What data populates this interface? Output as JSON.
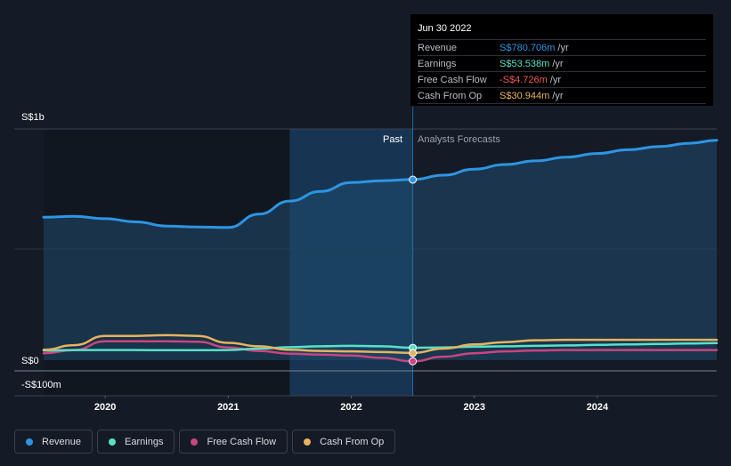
{
  "colors": {
    "revenue": "#2d95e3",
    "earnings": "#58e0c8",
    "free_cash_flow": "#c8467f",
    "cash_from_op": "#e7b35e",
    "background": "#151b26"
  },
  "tooltip": {
    "date": "Jun 30 2022",
    "rows": [
      {
        "label": "Revenue",
        "value": "S$780.706m",
        "unit": "/yr"
      },
      {
        "label": "Earnings",
        "value": "S$53.538m",
        "unit": "/yr"
      },
      {
        "label": "Free Cash Flow",
        "value": "-S$4.726m",
        "unit": "/yr"
      },
      {
        "label": "Cash From Op",
        "value": "S$30.944m",
        "unit": "/yr"
      }
    ]
  },
  "legend": [
    {
      "label": "Revenue",
      "color": "#2d95e3"
    },
    {
      "label": "Earnings",
      "color": "#58e0c8"
    },
    {
      "label": "Free Cash Flow",
      "color": "#c8467f"
    },
    {
      "label": "Cash From Op",
      "color": "#e7b35e"
    }
  ],
  "chart_data": {
    "type": "line",
    "title": "",
    "x_unit": "year",
    "xlim": [
      2019.5,
      2024.97
    ],
    "ylim": [
      -100,
      1000
    ],
    "y_tick_labels": [
      {
        "value": 1000,
        "label": "S$1b"
      },
      {
        "value": 0,
        "label": "S$0"
      },
      {
        "value": -100,
        "label": "-S$100m"
      }
    ],
    "x_tick_labels": [
      {
        "value": 2020,
        "label": "2020"
      },
      {
        "value": 2021,
        "label": "2021"
      },
      {
        "value": 2022,
        "label": "2022"
      },
      {
        "value": 2023,
        "label": "2023"
      },
      {
        "value": 2024,
        "label": "2024"
      }
    ],
    "past_label": "Past",
    "forecast_label": "Analysts Forecasts",
    "highlight_start": 2021.5,
    "divider_x": 2022.5,
    "series": [
      {
        "name": "Revenue",
        "key": "revenue",
        "x": [
          2019.5,
          2019.75,
          2020.0,
          2020.25,
          2020.5,
          2020.75,
          2021.0,
          2021.25,
          2021.5,
          2021.75,
          2022.0,
          2022.25,
          2022.5,
          2022.75,
          2023.0,
          2023.25,
          2023.5,
          2023.75,
          2024.0,
          2024.25,
          2024.5,
          2024.75,
          2024.97
        ],
        "values": [
          618,
          622,
          612,
          598,
          580,
          576,
          574,
          632,
          688,
          730,
          768,
          776,
          781,
          800,
          826,
          846,
          862,
          878,
          894,
          910,
          924,
          938,
          951
        ]
      },
      {
        "name": "Earnings",
        "key": "earnings",
        "x": [
          2019.5,
          2019.75,
          2020.0,
          2020.25,
          2020.5,
          2020.75,
          2021.0,
          2021.25,
          2021.5,
          2021.75,
          2022.0,
          2022.25,
          2022.5,
          2022.75,
          2023.0,
          2023.25,
          2023.5,
          2023.75,
          2024.0,
          2024.25,
          2024.5,
          2024.75,
          2024.97
        ],
        "values": [
          42,
          44,
          44,
          44,
          43,
          43,
          44,
          50,
          56,
          60,
          62,
          60,
          54,
          55,
          58,
          60,
          62,
          64,
          66,
          68,
          70,
          72,
          74
        ]
      },
      {
        "name": "Free Cash Flow",
        "key": "free_cash_flow",
        "x": [
          2019.5,
          2019.75,
          2020.0,
          2020.25,
          2020.5,
          2020.75,
          2021.0,
          2021.25,
          2021.5,
          2021.75,
          2022.0,
          2022.25,
          2022.5,
          2022.75,
          2023.0,
          2023.25,
          2023.5,
          2023.75,
          2024.0,
          2024.25,
          2024.5,
          2024.75,
          2024.97
        ],
        "values": [
          30,
          44,
          82,
          82,
          82,
          80,
          55,
          40,
          28,
          24,
          20,
          10,
          -5,
          15,
          30,
          38,
          42,
          44,
          44,
          44,
          44,
          44,
          44
        ]
      },
      {
        "name": "Cash From Op",
        "key": "cash_from_op",
        "x": [
          2019.5,
          2019.75,
          2020.0,
          2020.25,
          2020.5,
          2020.75,
          2021.0,
          2021.25,
          2021.5,
          2021.75,
          2022.0,
          2022.25,
          2022.5,
          2022.75,
          2023.0,
          2023.25,
          2023.5,
          2023.75,
          2024.0,
          2024.25,
          2024.5,
          2024.75,
          2024.97
        ],
        "values": [
          45,
          65,
          105,
          105,
          108,
          105,
          75,
          60,
          45,
          40,
          38,
          35,
          31,
          50,
          68,
          78,
          86,
          88,
          88,
          88,
          88,
          88,
          88
        ]
      }
    ],
    "highlight_points": {
      "x": 2022.5,
      "values": [
        {
          "key": "revenue",
          "value": 780.706
        },
        {
          "key": "earnings",
          "value": 53.538
        },
        {
          "key": "free_cash_flow",
          "value": -4.726
        },
        {
          "key": "cash_from_op",
          "value": 30.944
        }
      ]
    }
  }
}
